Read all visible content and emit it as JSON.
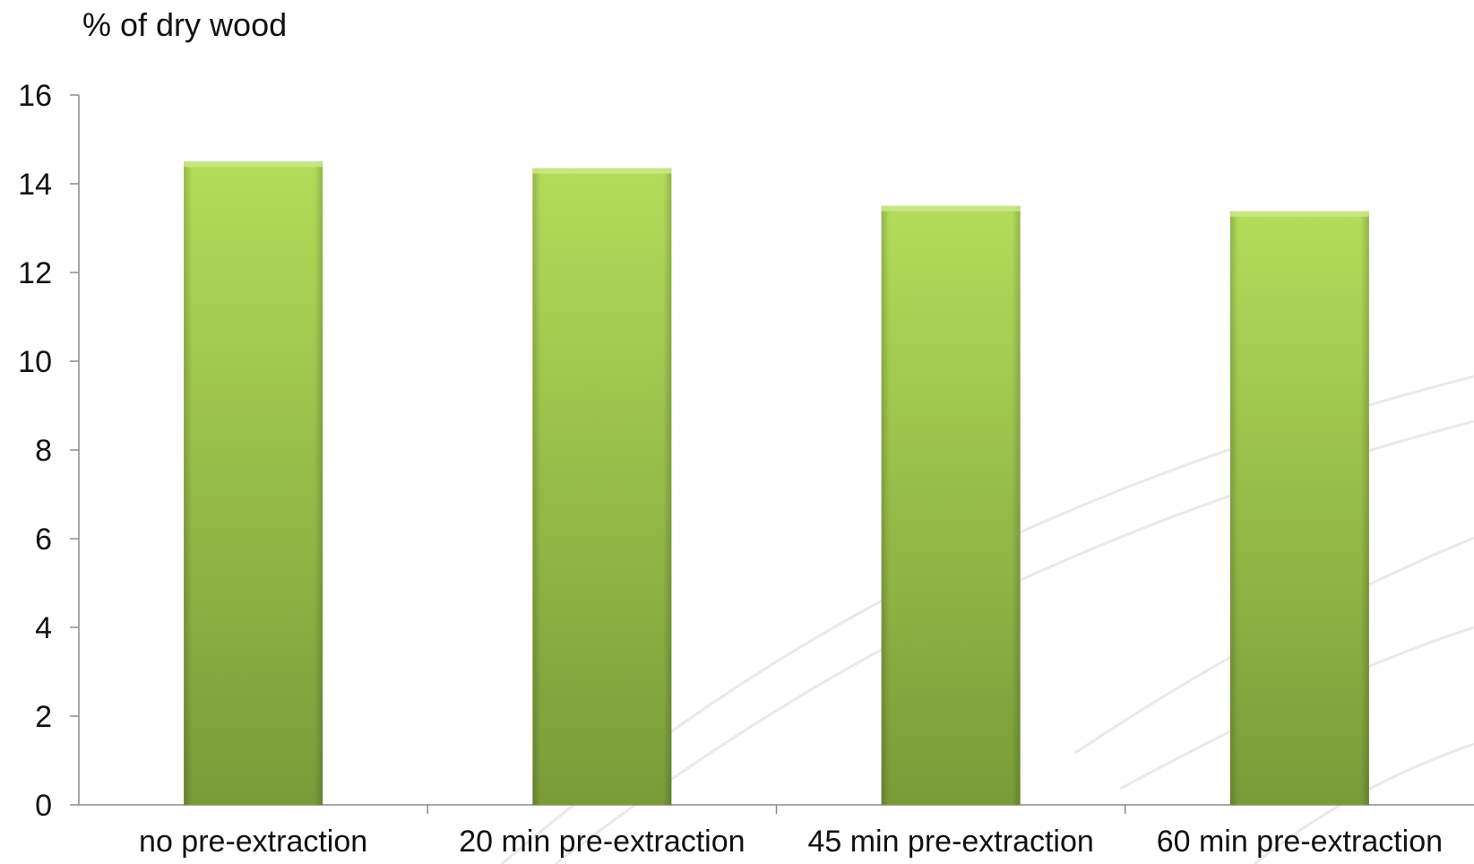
{
  "chart_data": {
    "type": "bar",
    "title": "",
    "xlabel": "",
    "ylabel": "% of dry wood",
    "categories": [
      "no pre-extraction",
      "20 min pre-extraction",
      "45 min pre-extraction",
      "60 min pre-extraction"
    ],
    "values": [
      14.5,
      14.35,
      13.5,
      13.38
    ],
    "ylim": [
      0,
      16
    ],
    "yticks": [
      0,
      2,
      4,
      6,
      8,
      10,
      12,
      14,
      16
    ],
    "grid": false,
    "legend": "none"
  },
  "colors": {
    "bar_top": "#b4dc5a",
    "bar_bottom": "#7a9a38",
    "axis": "#8c8c8c",
    "text": "#111111"
  }
}
